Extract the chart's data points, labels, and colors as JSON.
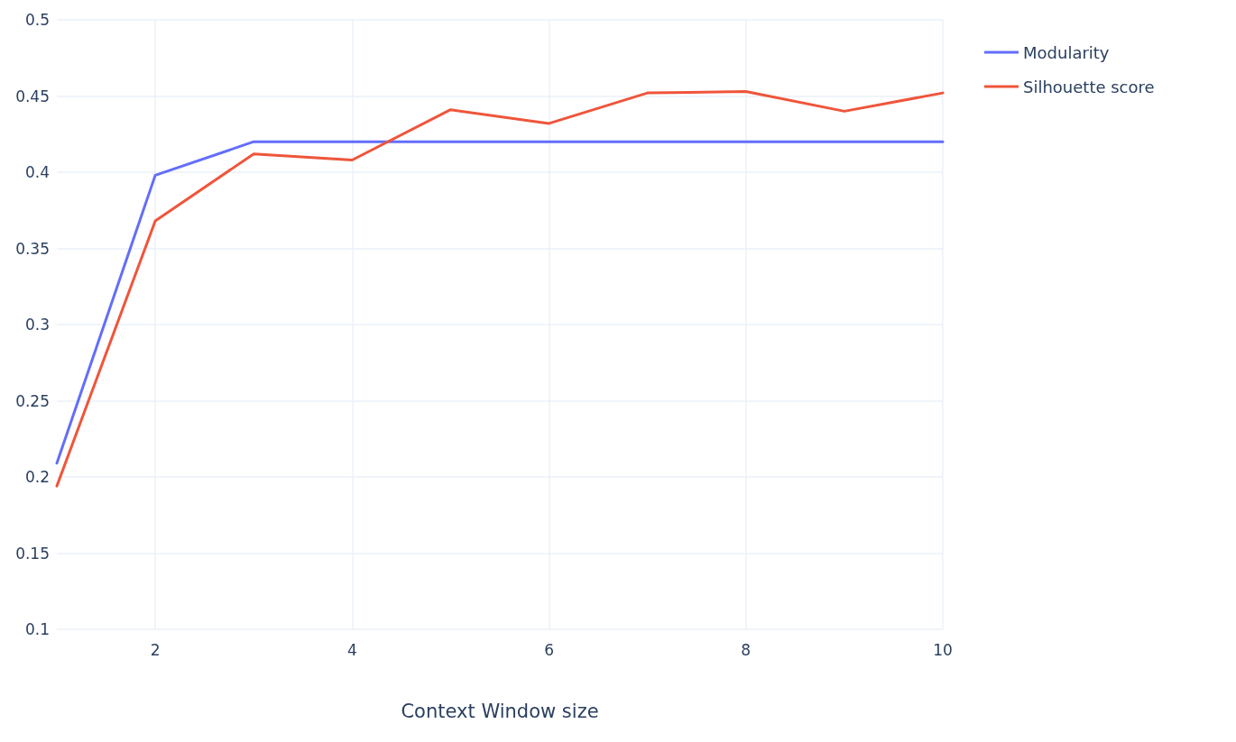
{
  "chart_data": {
    "type": "line",
    "xlabel": "Context Window size",
    "x": [
      1,
      2,
      3,
      4,
      5,
      6,
      7,
      8,
      9,
      10
    ],
    "series": [
      {
        "name": "Modularity",
        "color": "#636efa",
        "values": [
          0.209,
          0.398,
          0.42,
          0.42,
          0.42,
          0.42,
          0.42,
          0.42,
          0.42,
          0.42
        ]
      },
      {
        "name": "Silhouette score",
        "color": "#ef553b",
        "values": [
          0.194,
          0.368,
          0.412,
          0.408,
          0.441,
          0.432,
          0.452,
          0.453,
          0.44,
          0.452
        ]
      }
    ],
    "xlim": [
      1,
      10
    ],
    "xticks": [
      2,
      4,
      6,
      8,
      10
    ],
    "ylim": [
      0.1,
      0.5
    ],
    "yticks": [
      0.1,
      0.15,
      0.2,
      0.25,
      0.3,
      0.35,
      0.4,
      0.45,
      0.5
    ],
    "grid": true,
    "legend": "top right",
    "marker": "none",
    "line_style": "solid"
  }
}
